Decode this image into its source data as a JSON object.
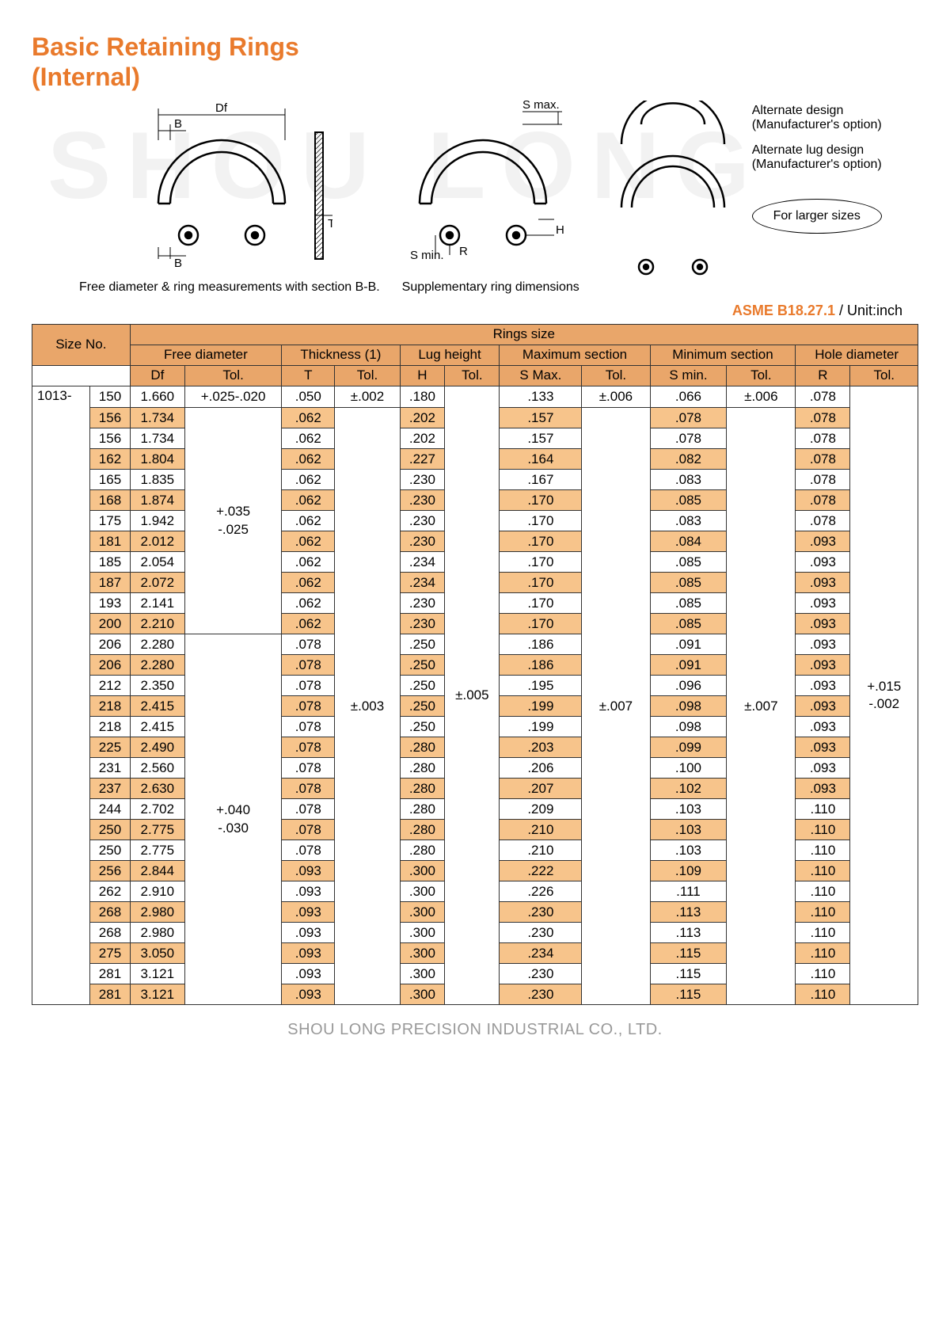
{
  "title_line1": "Basic Retaining Rings",
  "title_line2": "(Internal)",
  "watermark": "SHOU LONG",
  "diagram1": {
    "Df": "Df",
    "B_top": "B",
    "B_bot": "B",
    "T": "T",
    "caption": "Free diameter & ring measurements\nwith section B-B."
  },
  "diagram2": {
    "Smax": "S max.",
    "Smin": "S min.",
    "R": "R",
    "H": "H",
    "caption": "Supplementary ring\ndimensions"
  },
  "diagram3": {
    "alt_design": "Alternate design\n(Manufacturer's option)",
    "alt_lug": "Alternate lug design\n(Manufacturer's option)",
    "larger": "For larger sizes"
  },
  "std_label": "ASME B18.27.1",
  "unit_label": " / Unit:inch",
  "headers": {
    "sizeno": "Size No.",
    "ringsize": "Rings size",
    "freedia": "Free diameter",
    "thickness": "Thickness (1)",
    "lug": "Lug height",
    "maxsec": "Maximum section",
    "minsec": "Minimum section",
    "holedia": "Hole diameter",
    "Df": "Df",
    "T": "T",
    "H": "H",
    "Smax": "S Max.",
    "Smin": "S min.",
    "R": "R",
    "Tol": "Tol."
  },
  "prefix": "1013-",
  "merged": {
    "df_tol_1": "+.025-.020",
    "df_tol_2": "+.035\n-.025",
    "df_tol_3": "+.040\n-.030",
    "t_tol_1": "±.002",
    "t_tol_2": "±.003",
    "h_tol": "±.005",
    "smax_tol_1": "±.006",
    "smax_tol_2": "±.007",
    "smin_tol_1": "±.006",
    "smin_tol_2": "±.007",
    "r_tol": "+.015\n-.002"
  },
  "rows": [
    {
      "n": "150",
      "df": "1.660",
      "t": ".050",
      "h": ".180",
      "smax": ".133",
      "smin": ".066",
      "r": ".078"
    },
    {
      "n": "156",
      "df": "1.734",
      "t": ".062",
      "h": ".202",
      "smax": ".157",
      "smin": ".078",
      "r": ".078"
    },
    {
      "n": "156",
      "df": "1.734",
      "t": ".062",
      "h": ".202",
      "smax": ".157",
      "smin": ".078",
      "r": ".078"
    },
    {
      "n": "162",
      "df": "1.804",
      "t": ".062",
      "h": ".227",
      "smax": ".164",
      "smin": ".082",
      "r": ".078"
    },
    {
      "n": "165",
      "df": "1.835",
      "t": ".062",
      "h": ".230",
      "smax": ".167",
      "smin": ".083",
      "r": ".078"
    },
    {
      "n": "168",
      "df": "1.874",
      "t": ".062",
      "h": ".230",
      "smax": ".170",
      "smin": ".085",
      "r": ".078"
    },
    {
      "n": "175",
      "df": "1.942",
      "t": ".062",
      "h": ".230",
      "smax": ".170",
      "smin": ".083",
      "r": ".078"
    },
    {
      "n": "181",
      "df": "2.012",
      "t": ".062",
      "h": ".230",
      "smax": ".170",
      "smin": ".084",
      "r": ".093"
    },
    {
      "n": "185",
      "df": "2.054",
      "t": ".062",
      "h": ".234",
      "smax": ".170",
      "smin": ".085",
      "r": ".093"
    },
    {
      "n": "187",
      "df": "2.072",
      "t": ".062",
      "h": ".234",
      "smax": ".170",
      "smin": ".085",
      "r": ".093"
    },
    {
      "n": "193",
      "df": "2.141",
      "t": ".062",
      "h": ".230",
      "smax": ".170",
      "smin": ".085",
      "r": ".093"
    },
    {
      "n": "200",
      "df": "2.210",
      "t": ".062",
      "h": ".230",
      "smax": ".170",
      "smin": ".085",
      "r": ".093"
    },
    {
      "n": "206",
      "df": "2.280",
      "t": ".078",
      "h": ".250",
      "smax": ".186",
      "smin": ".091",
      "r": ".093"
    },
    {
      "n": "206",
      "df": "2.280",
      "t": ".078",
      "h": ".250",
      "smax": ".186",
      "smin": ".091",
      "r": ".093"
    },
    {
      "n": "212",
      "df": "2.350",
      "t": ".078",
      "h": ".250",
      "smax": ".195",
      "smin": ".096",
      "r": ".093"
    },
    {
      "n": "218",
      "df": "2.415",
      "t": ".078",
      "h": ".250",
      "smax": ".199",
      "smin": ".098",
      "r": ".093"
    },
    {
      "n": "218",
      "df": "2.415",
      "t": ".078",
      "h": ".250",
      "smax": ".199",
      "smin": ".098",
      "r": ".093"
    },
    {
      "n": "225",
      "df": "2.490",
      "t": ".078",
      "h": ".280",
      "smax": ".203",
      "smin": ".099",
      "r": ".093"
    },
    {
      "n": "231",
      "df": "2.560",
      "t": ".078",
      "h": ".280",
      "smax": ".206",
      "smin": ".100",
      "r": ".093"
    },
    {
      "n": "237",
      "df": "2.630",
      "t": ".078",
      "h": ".280",
      "smax": ".207",
      "smin": ".102",
      "r": ".093"
    },
    {
      "n": "244",
      "df": "2.702",
      "t": ".078",
      "h": ".280",
      "smax": ".209",
      "smin": ".103",
      "r": ".110"
    },
    {
      "n": "250",
      "df": "2.775",
      "t": ".078",
      "h": ".280",
      "smax": ".210",
      "smin": ".103",
      "r": ".110"
    },
    {
      "n": "250",
      "df": "2.775",
      "t": ".078",
      "h": ".280",
      "smax": ".210",
      "smin": ".103",
      "r": ".110"
    },
    {
      "n": "256",
      "df": "2.844",
      "t": ".093",
      "h": ".300",
      "smax": ".222",
      "smin": ".109",
      "r": ".110"
    },
    {
      "n": "262",
      "df": "2.910",
      "t": ".093",
      "h": ".300",
      "smax": ".226",
      "smin": ".111",
      "r": ".110"
    },
    {
      "n": "268",
      "df": "2.980",
      "t": ".093",
      "h": ".300",
      "smax": ".230",
      "smin": ".113",
      "r": ".110"
    },
    {
      "n": "268",
      "df": "2.980",
      "t": ".093",
      "h": ".300",
      "smax": ".230",
      "smin": ".113",
      "r": ".110"
    },
    {
      "n": "275",
      "df": "3.050",
      "t": ".093",
      "h": ".300",
      "smax": ".234",
      "smin": ".115",
      "r": ".110"
    },
    {
      "n": "281",
      "df": "3.121",
      "t": ".093",
      "h": ".300",
      "smax": ".230",
      "smin": ".115",
      "r": ".110"
    },
    {
      "n": "281",
      "df": "3.121",
      "t": ".093",
      "h": ".300",
      "smax": ".230",
      "smin": ".115",
      "r": ".110"
    }
  ],
  "footer": "SHOU LONG PRECISION INDUSTRIAL CO., LTD."
}
